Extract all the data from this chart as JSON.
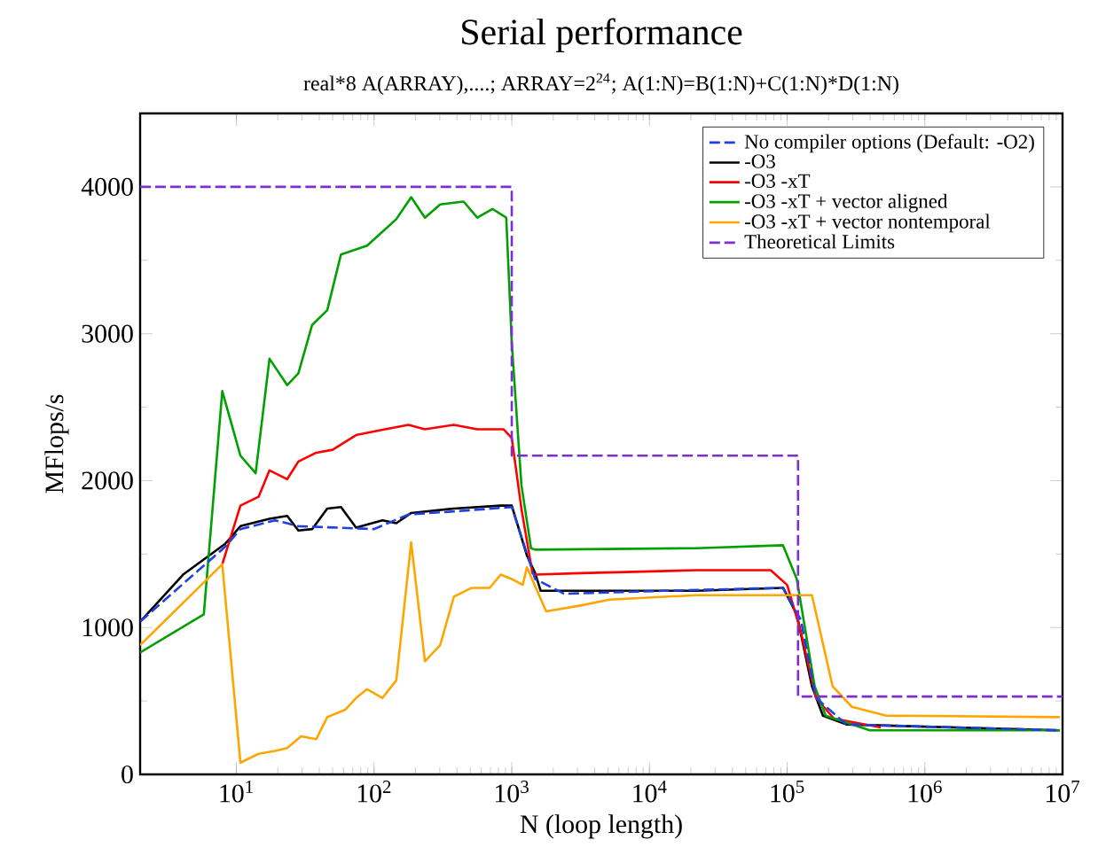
{
  "chart_data": {
    "type": "line",
    "title": "Serial performance",
    "subtitle": "real*8 A(ARRAY),....; ARRAY=2$^{24}$; A(1:N)=B(1:N)+C(1:N)*D(1:N)",
    "xlabel": "N (loop length)",
    "ylabel": "MFlops/s",
    "log": "x",
    "legend": "top right",
    "xlim": [
      2,
      10000000
    ],
    "ylim": [
      0,
      4500
    ],
    "xticks": [
      {
        "value": 10,
        "label": "10$^{1}$"
      },
      {
        "value": 100,
        "label": "10$^{2}$"
      },
      {
        "value": 1000,
        "label": "10$^{3}$"
      },
      {
        "value": 10000,
        "label": "10$^{4}$"
      },
      {
        "value": 100000,
        "label": "10$^{5}$"
      },
      {
        "value": 1000000,
        "label": "10$^{6}$"
      },
      {
        "value": 10000000,
        "label": "10$^{7}$"
      }
    ],
    "yticks": [
      0,
      1000,
      2000,
      3000,
      4000
    ],
    "series": [
      {
        "name": "No compiler options (Default: -O2)",
        "color": "#1f3fe0",
        "line_style": "dashed",
        "x": [
          2,
          8.3,
          10.7,
          19.1,
          28.2,
          100,
          178,
          380,
          1000,
          1479,
          2399,
          12589,
          93325,
          125893,
          162181,
          269153,
          9549926
        ],
        "values": [
          1040,
          1550,
          1670,
          1730,
          1690,
          1670,
          1770,
          1790,
          1820,
          1330,
          1230,
          1250,
          1270,
          1050,
          520,
          340,
          300
        ]
      },
      {
        "name": "-O3",
        "color": "#000000",
        "line_style": "solid",
        "x": [
          2,
          4.1,
          8.3,
          10.7,
          17.4,
          23.4,
          28.2,
          35.5,
          45.7,
          57.5,
          74,
          115,
          145,
          186,
          380,
          832,
          1000,
          1288,
          1479,
          1622,
          3162,
          21878,
          93325,
          117490,
          151356,
          181970,
          269153,
          9549926
        ],
        "values": [
          1040,
          1360,
          1570,
          1690,
          1740,
          1760,
          1660,
          1670,
          1810,
          1820,
          1680,
          1730,
          1710,
          1780,
          1810,
          1830,
          1830,
          1490,
          1370,
          1250,
          1250,
          1250,
          1270,
          1090,
          600,
          400,
          340,
          300
        ]
      },
      {
        "name": "-O3 -xT",
        "color": "#ff0000",
        "line_style": "solid",
        "x": [
          7.9,
          10.7,
          14.5,
          17.4,
          23.4,
          28.2,
          38,
          50,
          74,
          120,
          178,
          234,
          380,
          562,
          871,
          1000,
          1175,
          1413,
          1479,
          3162,
          21878,
          75858,
          100000,
          125893,
          162181,
          218776,
          478630
        ],
        "values": [
          1430,
          1830,
          1890,
          2070,
          2010,
          2130,
          2190,
          2210,
          2310,
          2350,
          2380,
          2350,
          2380,
          2350,
          2350,
          2290,
          1810,
          1370,
          1360,
          1370,
          1390,
          1390,
          1290,
          970,
          520,
          380,
          320
        ]
      },
      {
        "name": "-O3 -xT + vector aligned",
        "color": "#00a000",
        "line_style": "solid",
        "x": [
          2,
          5.8,
          7.9,
          10.7,
          13.8,
          17.4,
          23.4,
          28.2,
          35.5,
          45.7,
          57.5,
          89,
          145,
          186,
          234,
          302,
          447,
          562,
          724,
          912,
          1000,
          1175,
          1380,
          1479,
          21878,
          93325,
          117490,
          158489,
          190546,
          398107,
          9549926
        ],
        "values": [
          830,
          1090,
          2610,
          2170,
          2050,
          2830,
          2650,
          2730,
          3060,
          3160,
          3540,
          3600,
          3780,
          3930,
          3790,
          3880,
          3900,
          3790,
          3850,
          3790,
          2940,
          1970,
          1540,
          1530,
          1540,
          1560,
          1330,
          600,
          400,
          300,
          300
        ]
      },
      {
        "name": "-O3 -xT + vector nontemporal",
        "color": "#ffa500",
        "line_style": "solid",
        "x": [
          2,
          7.9,
          10.7,
          14.5,
          19.1,
          23.4,
          29.5,
          38,
          45.7,
          61.7,
          74,
          89,
          115,
          145,
          186,
          234,
          302,
          380,
          513,
          692,
          832,
          1000,
          1202,
          1288,
          1778,
          3162,
          5129,
          21878,
          93325,
          151356,
          213796,
          295121,
          524807,
          9549926
        ],
        "values": [
          880,
          1430,
          80,
          140,
          160,
          180,
          260,
          240,
          390,
          440,
          520,
          580,
          520,
          640,
          1580,
          770,
          880,
          1210,
          1270,
          1270,
          1360,
          1330,
          1290,
          1410,
          1110,
          1150,
          1190,
          1220,
          1220,
          1220,
          600,
          460,
          400,
          390
        ]
      },
      {
        "name": "Theoretical Limits",
        "color": "#7b2fd0",
        "line_style": "dashed",
        "x": [
          2,
          1000,
          1000,
          120000,
          120000,
          10000000
        ],
        "values": [
          4000,
          4000,
          2170,
          2170,
          530,
          530
        ]
      }
    ]
  }
}
